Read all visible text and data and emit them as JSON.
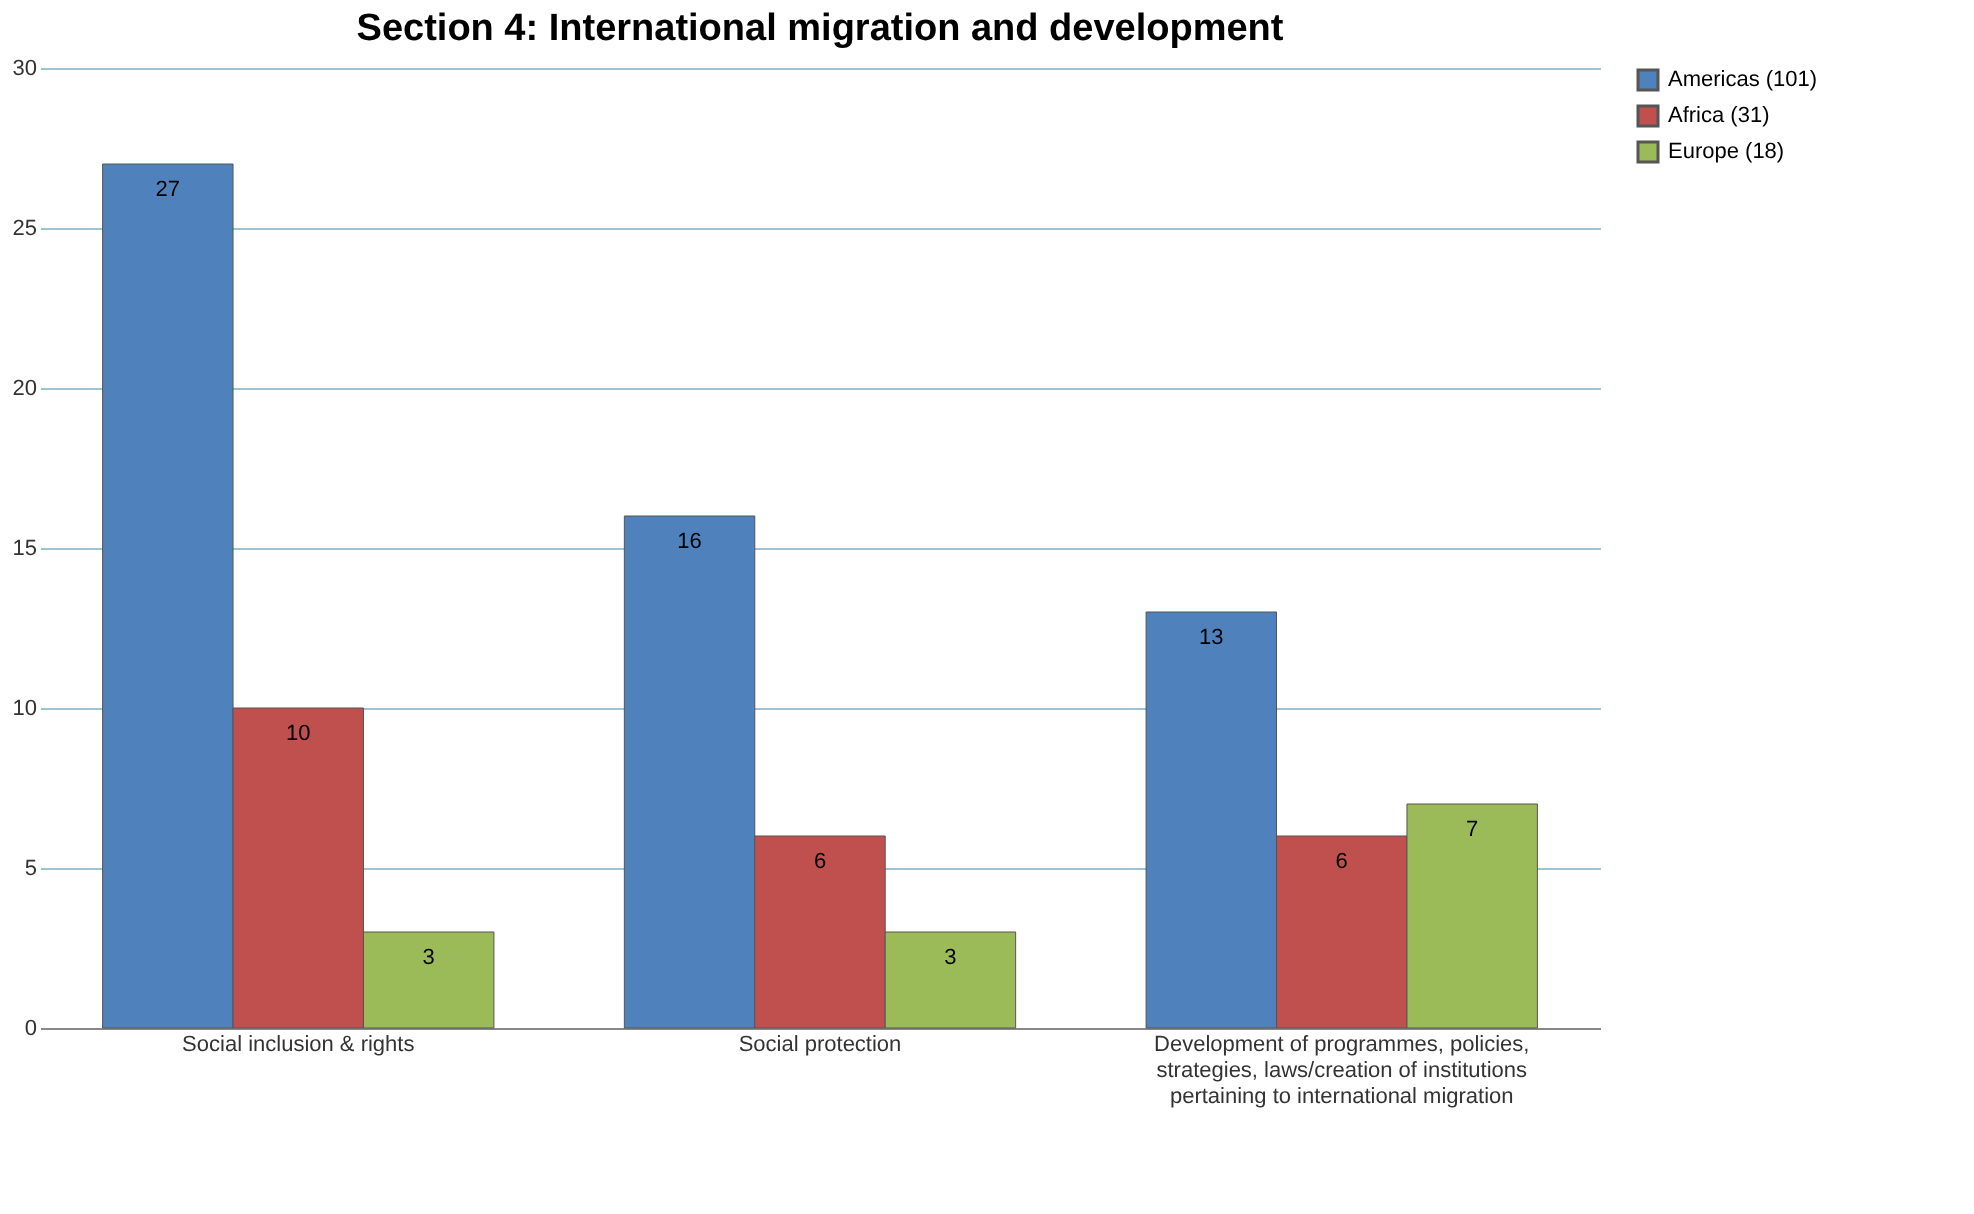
{
  "chart_data": {
    "type": "bar",
    "title": "Section 4: International migration and development",
    "categories": [
      "Social inclusion & rights",
      "Social protection",
      "Development of programmes, policies, strategies, laws/creation of institutions pertaining to international migration"
    ],
    "series": [
      {
        "name": "Americas (101)",
        "color": "#4f81bd",
        "values": [
          27,
          16,
          13
        ]
      },
      {
        "name": "Africa (31)",
        "color": "#c0504d",
        "values": [
          10,
          6,
          6
        ]
      },
      {
        "name": "Europe (18)",
        "color": "#9bbb59",
        "values": [
          3,
          3,
          7
        ]
      }
    ],
    "ylim": [
      0,
      30
    ],
    "yticks": [
      0,
      5,
      10,
      15,
      20,
      25,
      30
    ],
    "grid": "y",
    "legend": "right",
    "data_labels": true
  }
}
